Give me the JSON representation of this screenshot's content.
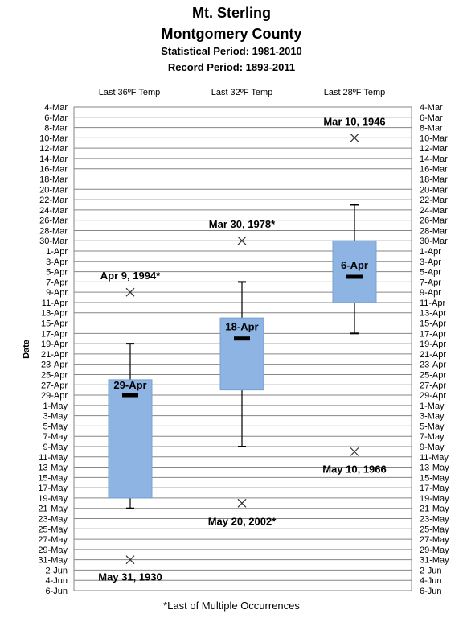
{
  "header": {
    "title_line1": "Mt. Sterling",
    "title_line2": "Montgomery County",
    "subtitle_line1": "Statistical Period: 1981-2010",
    "subtitle_line2": "Record Period: 1893-2011"
  },
  "footnote": "*Last of Multiple Occurrences",
  "chart_data": {
    "type": "box",
    "ylabel": "Date",
    "y_ticks": [
      "4-Mar",
      "6-Mar",
      "8-Mar",
      "10-Mar",
      "12-Mar",
      "14-Mar",
      "16-Mar",
      "18-Mar",
      "20-Mar",
      "22-Mar",
      "24-Mar",
      "26-Mar",
      "28-Mar",
      "30-Mar",
      "1-Apr",
      "3-Apr",
      "5-Apr",
      "7-Apr",
      "9-Apr",
      "11-Apr",
      "13-Apr",
      "15-Apr",
      "17-Apr",
      "19-Apr",
      "21-Apr",
      "23-Apr",
      "25-Apr",
      "27-Apr",
      "29-Apr",
      "1-May",
      "3-May",
      "5-May",
      "7-May",
      "9-May",
      "11-May",
      "13-May",
      "15-May",
      "17-May",
      "19-May",
      "21-May",
      "23-May",
      "25-May",
      "27-May",
      "29-May",
      "31-May",
      "2-Jun",
      "4-Jun",
      "6-Jun"
    ],
    "y_axis_direction": "dates increase downward",
    "gridlines": true,
    "box_color": "#8eb4e3",
    "series": [
      {
        "name": "Last 36ºF Temp",
        "whisker_top": "19-Apr",
        "box_top": "26-Apr",
        "median": "29-Apr",
        "median_label": "29-Apr",
        "box_bottom": "19-May",
        "whisker_bottom": "21-May",
        "records": [
          {
            "date": "9-Apr",
            "label": "Apr 9, 1994*"
          },
          {
            "date": "31-May",
            "label": "May 31, 1930"
          }
        ]
      },
      {
        "name": "Last 32ºF Temp",
        "whisker_top": "7-Apr",
        "box_top": "14-Apr",
        "median": "18-Apr",
        "median_label": "18-Apr",
        "box_bottom": "28-Apr",
        "whisker_bottom": "9-May",
        "records": [
          {
            "date": "30-Mar",
            "label": "Mar 30, 1978*"
          },
          {
            "date": "20-May",
            "label": "May 20, 2002*"
          }
        ]
      },
      {
        "name": "Last 28ºF Temp",
        "whisker_top": "23-Mar",
        "box_top": "30-Mar",
        "median": "6-Apr",
        "median_label": "6-Apr",
        "box_bottom": "11-Apr",
        "whisker_bottom": "17-Apr",
        "records": [
          {
            "date": "10-Mar",
            "label": "Mar 10, 1946"
          },
          {
            "date": "10-May",
            "label": "May 10, 1966"
          }
        ]
      }
    ]
  }
}
